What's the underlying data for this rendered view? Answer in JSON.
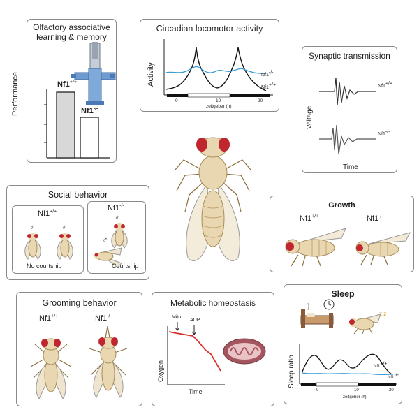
{
  "olfactory": {
    "title": "Olfactory associative learning & memory",
    "ylabel": "Performance",
    "bar1_label": "Nf1",
    "bar1_sup": "+/+",
    "bar2_label": "Nf1",
    "bar2_sup": "-/-"
  },
  "circadian": {
    "title": "Circadian locomotor activity",
    "ylabel": "Activity",
    "xlabel": "zeitgeber (h)",
    "ticks": [
      "0",
      "10",
      "20"
    ],
    "label_mut": "Nf1",
    "label_mut_sup": "-/-",
    "label_wt": "Nf1",
    "label_wt_sup": "+/+"
  },
  "synaptic": {
    "title": "Synaptic transmission",
    "ylabel": "Voltage",
    "xlabel": "Time",
    "label_wt": "Nf1",
    "label_wt_sup": "+/+",
    "label_mut": "Nf1",
    "label_mut_sup": "-/-"
  },
  "social": {
    "title": "Social behavior",
    "left_label": "Nf1",
    "left_sup": "+/+",
    "right_label": "Nf1",
    "right_sup": "-/-",
    "male_symbol": "♂",
    "no_courtship": "No courtship",
    "courtship": "Courtship"
  },
  "growth": {
    "title": "Growth",
    "left_label": "Nf1",
    "left_sup": "+/+",
    "right_label": "Nf1",
    "right_sup": "-/-"
  },
  "grooming": {
    "title": "Grooming behavior",
    "left_label": "Nf1",
    "left_sup": "+/+",
    "right_label": "Nf1",
    "right_sup": "-/-"
  },
  "metabolic": {
    "title": "Metabolic homeostasis",
    "ylabel": "Oxygen",
    "xlabel": "Time",
    "mito": "Mito",
    "adp": "ADP"
  },
  "sleep": {
    "title": "Sleep",
    "ylabel": "Sleep ratio",
    "xlabel": "zeitgeber (h)",
    "ticks": [
      "0",
      "10",
      "20"
    ],
    "label_wt": "Nf1",
    "label_wt_sup": "+/+",
    "label_mut": "Nf1",
    "label_mut_sup": "-/-",
    "zz": "z z"
  },
  "colors": {
    "border": "#8a8a8a",
    "fly_body": "#e8d7b0",
    "fly_eye": "#c0262d",
    "wt_bar": "#d8d8d8",
    "trace_blue": "#3a9bd5",
    "oxygen_red": "#d8322c"
  }
}
